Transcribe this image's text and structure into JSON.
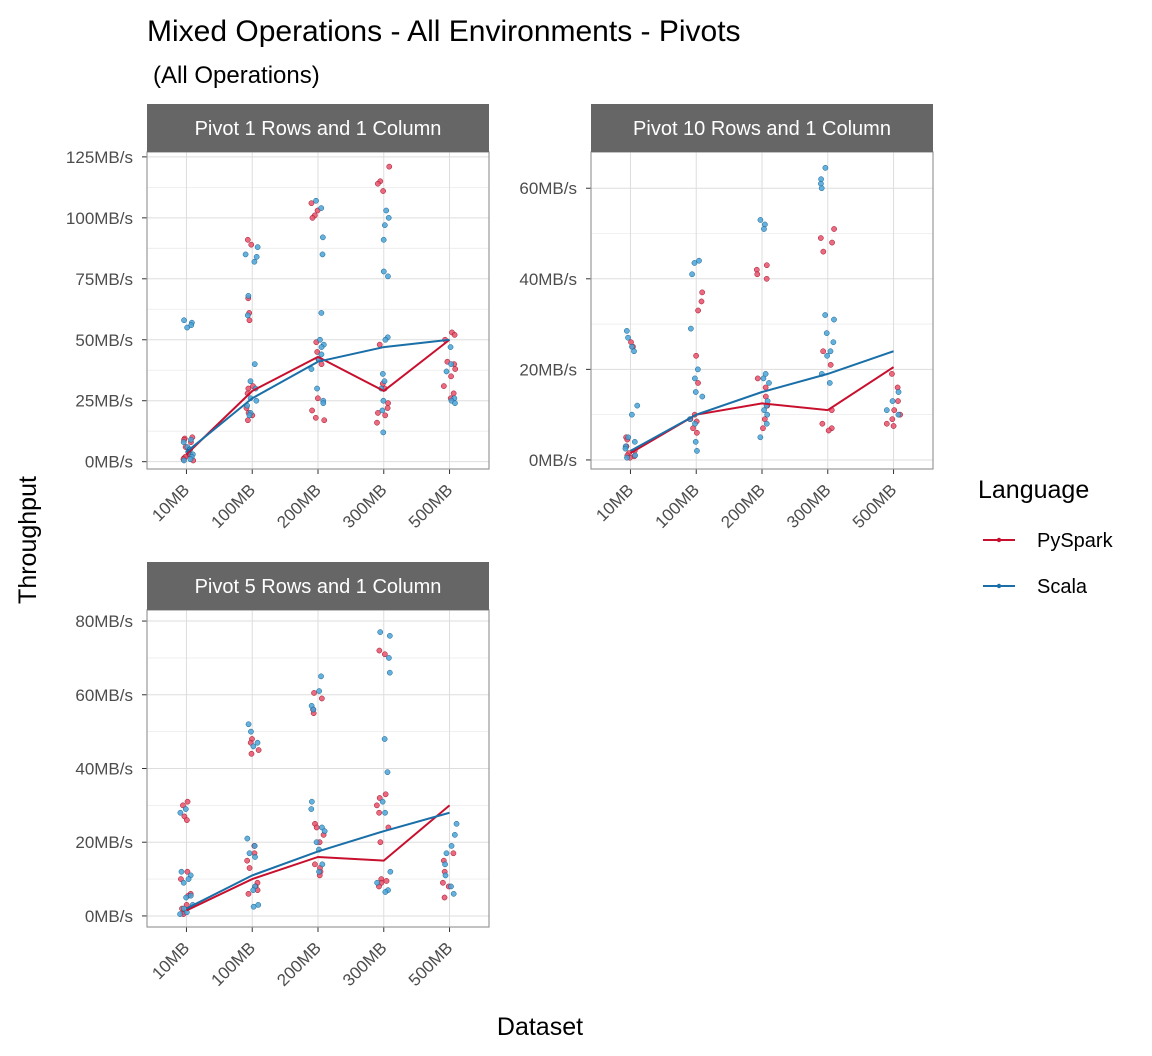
{
  "title": "Mixed Operations - All Environments - Pivots",
  "subtitle": "(All Operations)",
  "xlabel": "Dataset",
  "ylabel": "Throughput",
  "legend": {
    "title": "Language",
    "position": "right",
    "items": [
      {
        "label": "PySpark",
        "color": "#C8102E"
      },
      {
        "label": "Scala",
        "color": "#1A6FA8"
      }
    ]
  },
  "colors": {
    "pyspark_line": "#C8102E",
    "pyspark_point": "#E8506A",
    "scala_line": "#1A6FA8",
    "scala_point": "#4AA3D8",
    "strip": "#666666",
    "grid": "#dddddd",
    "panel_border": "#999999"
  },
  "chart_data": [
    {
      "type": "line",
      "panel": "Pivot 1 Rows and 1 Column",
      "categories": [
        "10MB",
        "100MB",
        "200MB",
        "300MB",
        "500MB"
      ],
      "y_ticks": [
        0,
        25,
        50,
        75,
        100,
        125
      ],
      "y_tick_labels": [
        "0MB/s",
        "25MB/s",
        "50MB/s",
        "75MB/s",
        "100MB/s",
        "125MB/s"
      ],
      "ylim": [
        -3,
        127
      ],
      "grid": true,
      "series": [
        {
          "name": "PySpark",
          "values": [
            3,
            29,
            43,
            29,
            50
          ],
          "points": [
            [
              10,
              9.5
            ],
            [
              9,
              8
            ],
            [
              6,
              4
            ],
            [
              3,
              1.5
            ],
            [
              2,
              1
            ],
            [
              0.5,
              3
            ],
            [
              67,
              61
            ],
            [
              58,
              31
            ],
            [
              30,
              28
            ],
            [
              22,
              20
            ],
            [
              19,
              17
            ],
            [
              91,
              89
            ],
            [
              49,
              45
            ],
            [
              42,
              40
            ],
            [
              26,
              21
            ],
            [
              18,
              17
            ],
            [
              106,
              103
            ],
            [
              101,
              100
            ],
            [
              48,
              32
            ],
            [
              30,
              24
            ],
            [
              22,
              20
            ],
            [
              19,
              16
            ],
            [
              121,
              115
            ],
            [
              114,
              111
            ],
            [
              53,
              52
            ],
            [
              50,
              41
            ],
            [
              40,
              38
            ],
            [
              35,
              31
            ],
            [
              28,
              26
            ]
          ]
        },
        {
          "name": "Scala",
          "values": [
            4,
            26,
            41,
            47,
            50
          ],
          "points": [
            [
              8,
              6
            ],
            [
              5,
              4
            ],
            [
              3,
              2
            ],
            [
              1,
              0.5
            ],
            [
              9,
              5
            ],
            [
              58,
              57
            ],
            [
              56,
              55
            ],
            [
              40,
              33
            ],
            [
              30,
              26
            ],
            [
              25,
              23
            ],
            [
              20,
              19
            ],
            [
              88,
              85
            ],
            [
              84,
              82
            ],
            [
              68,
              60
            ],
            [
              44,
              42
            ],
            [
              38,
              30
            ],
            [
              25,
              24
            ],
            [
              107,
              104
            ],
            [
              92,
              85
            ],
            [
              61,
              50
            ],
            [
              48,
              47
            ],
            [
              36,
              33
            ],
            [
              25,
              21
            ],
            [
              12,
              30
            ],
            [
              103,
              100
            ],
            [
              97,
              91
            ],
            [
              78,
              76
            ],
            [
              51,
              50
            ],
            [
              47,
              40
            ],
            [
              37,
              26
            ],
            [
              25,
              24
            ]
          ]
        }
      ]
    },
    {
      "type": "line",
      "panel": "Pivot 10 Rows and 1 Column",
      "categories": [
        "10MB",
        "100MB",
        "200MB",
        "300MB",
        "500MB"
      ],
      "y_ticks": [
        0,
        20,
        40,
        60
      ],
      "y_tick_labels": [
        "0MB/s",
        "20MB/s",
        "40MB/s",
        "60MB/s"
      ],
      "ylim": [
        -2,
        68
      ],
      "grid": true,
      "series": [
        {
          "name": "PySpark",
          "values": [
            1.5,
            10,
            12.5,
            11,
            20.5
          ],
          "points": [
            [
              5,
              4.5
            ],
            [
              3,
              2
            ],
            [
              1.5,
              1
            ],
            [
              0.8,
              0.5
            ],
            [
              26,
              25
            ],
            [
              23,
              10
            ],
            [
              9,
              8.5
            ],
            [
              7,
              6
            ],
            [
              37,
              35
            ],
            [
              33,
              17
            ],
            [
              16,
              12
            ],
            [
              9,
              7
            ],
            [
              43,
              42
            ],
            [
              41,
              40
            ],
            [
              18,
              14
            ],
            [
              11,
              8
            ],
            [
              7,
              6.5
            ],
            [
              51,
              49
            ],
            [
              48,
              46
            ],
            [
              24,
              21
            ],
            [
              19,
              16
            ],
            [
              13,
              11
            ],
            [
              10,
              9
            ],
            [
              8,
              7.5
            ]
          ]
        },
        {
          "name": "Scala",
          "values": [
            2,
            10,
            15,
            19,
            24
          ],
          "points": [
            [
              5,
              4
            ],
            [
              3,
              2.5
            ],
            [
              1,
              0.5
            ],
            [
              28.5,
              27
            ],
            [
              25,
              24
            ],
            [
              12,
              10
            ],
            [
              9,
              8
            ],
            [
              4,
              2
            ],
            [
              44,
              43.5
            ],
            [
              41,
              29
            ],
            [
              20,
              18
            ],
            [
              15,
              14
            ],
            [
              13,
              11
            ],
            [
              53,
              52
            ],
            [
              51,
              19
            ],
            [
              18,
              17
            ],
            [
              12,
              10
            ],
            [
              8,
              5
            ],
            [
              64.5,
              62
            ],
            [
              61,
              60
            ],
            [
              32,
              31
            ],
            [
              28,
              26
            ],
            [
              24,
              23
            ],
            [
              19,
              17
            ],
            [
              15,
              13
            ],
            [
              11,
              10
            ]
          ]
        }
      ]
    },
    {
      "type": "line",
      "panel": "Pivot 5 Rows and 1 Column",
      "categories": [
        "10MB",
        "100MB",
        "200MB",
        "300MB",
        "500MB"
      ],
      "y_ticks": [
        0,
        20,
        40,
        60,
        80
      ],
      "y_tick_labels": [
        "0MB/s",
        "20MB/s",
        "40MB/s",
        "60MB/s",
        "80MB/s"
      ],
      "ylim": [
        -3,
        83
      ],
      "grid": true,
      "series": [
        {
          "name": "PySpark",
          "values": [
            1.5,
            10,
            16,
            15,
            30
          ],
          "points": [
            [
              6,
              5.5
            ],
            [
              3,
              2
            ],
            [
              1,
              0.5
            ],
            [
              31,
              30
            ],
            [
              27,
              26
            ],
            [
              12,
              10
            ],
            [
              9,
              8
            ],
            [
              7,
              6
            ],
            [
              48,
              47
            ],
            [
              45,
              44
            ],
            [
              19,
              17
            ],
            [
              15,
              13
            ],
            [
              12,
              11
            ],
            [
              60.5,
              59
            ],
            [
              56,
              55
            ],
            [
              25,
              24
            ],
            [
              22,
              20
            ],
            [
              14,
              13
            ],
            [
              10,
              9.5
            ],
            [
              9,
              8
            ],
            [
              72,
              71
            ],
            [
              33,
              32
            ],
            [
              30,
              28
            ],
            [
              24,
              20
            ],
            [
              17,
              15
            ],
            [
              12,
              9
            ],
            [
              8,
              5
            ]
          ]
        },
        {
          "name": "Scala",
          "values": [
            2,
            11,
            17.5,
            23,
            28
          ],
          "points": [
            [
              5.5,
              5
            ],
            [
              3,
              2
            ],
            [
              1,
              0.5
            ],
            [
              29,
              28
            ],
            [
              12,
              11
            ],
            [
              10,
              9
            ],
            [
              8,
              7
            ],
            [
              3,
              2.5
            ],
            [
              52,
              50
            ],
            [
              47,
              46
            ],
            [
              21,
              19
            ],
            [
              17,
              16
            ],
            [
              14,
              12
            ],
            [
              65,
              61
            ],
            [
              57,
              56
            ],
            [
              31,
              29
            ],
            [
              24,
              23
            ],
            [
              20,
              18
            ],
            [
              12,
              9
            ],
            [
              7,
              6.5
            ],
            [
              77,
              76
            ],
            [
              70,
              66
            ],
            [
              48,
              39
            ],
            [
              31,
              28
            ],
            [
              25,
              22
            ],
            [
              19,
              17
            ],
            [
              14,
              11
            ],
            [
              8,
              6
            ]
          ]
        }
      ]
    }
  ]
}
